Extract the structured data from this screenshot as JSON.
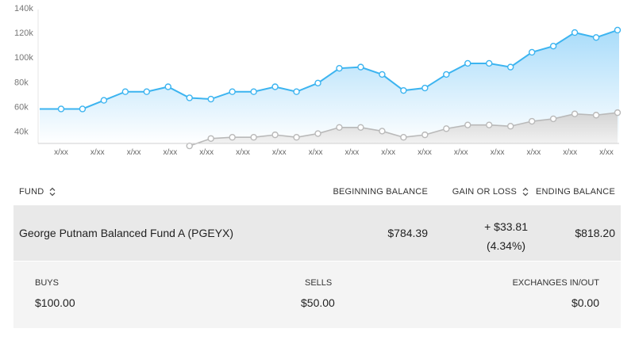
{
  "chart_data": {
    "type": "area",
    "y_ticks": [
      "140k",
      "120k",
      "100k",
      "80k",
      "60k",
      "40k"
    ],
    "y_tick_values": [
      140,
      120,
      100,
      80,
      60,
      40
    ],
    "ylim": [
      30,
      140
    ],
    "x_tick_labels": [
      "x/xx",
      "x/xx",
      "x/xx",
      "x/xx",
      "x/xx",
      "x/xx",
      "x/xx",
      "x/xx",
      "x/xx",
      "x/xx",
      "x/xx",
      "x/xx",
      "x/xx",
      "x/xx",
      "x/xx",
      "x/xx"
    ],
    "series": [
      {
        "color": "#3cb4f0",
        "fill": "#d7eefb",
        "values": [
          58,
          58,
          58,
          65,
          72,
          72,
          76,
          67,
          66,
          72,
          72,
          76,
          72,
          79,
          91,
          92,
          86,
          73,
          75,
          86,
          95,
          95,
          92,
          104,
          109,
          120,
          116,
          122
        ]
      },
      {
        "color": "#b9b9b9",
        "fill": "#e6e6e6",
        "start_index": 7,
        "values": [
          28,
          34,
          35,
          35,
          37,
          35,
          38,
          43,
          43,
          40,
          35,
          37,
          42,
          45,
          45,
          44,
          48,
          50,
          54,
          53,
          55
        ]
      }
    ]
  },
  "table": {
    "headers": {
      "fund": "FUND",
      "beginning_balance": "BEGINNING BALANCE",
      "gain_or_loss": "GAIN OR LOSS",
      "ending_balance": "ENDING BALANCE"
    },
    "row": {
      "fund_name": "George Putnam Balanced Fund A (PGEYX)",
      "beginning_balance": "$784.39",
      "gain_amount": "+ $33.81",
      "gain_percent": "(4.34%)",
      "ending_balance": "$818.20"
    },
    "details": {
      "buys_label": "BUYS",
      "buys_value": "$100.00",
      "sells_label": "SELLS",
      "sells_value": "$50.00",
      "exchanges_label": "EXCHANGES IN/OUT",
      "exchanges_value": "$0.00"
    }
  },
  "icons": {
    "sort": "sort-up-down-icon"
  }
}
